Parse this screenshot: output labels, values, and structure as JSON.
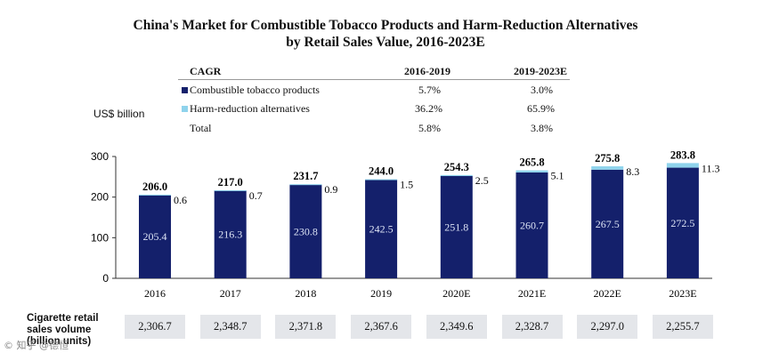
{
  "title_line1": "China's Market for Combustible Tobacco Products and Harm-Reduction Alternatives",
  "title_line2": "by Retail Sales Value, 2016-2023E",
  "cagr_table": {
    "header": "CAGR",
    "col1": "2016-2019",
    "col2": "2019-2023E",
    "rows": [
      {
        "label": "Combustible tobacco products",
        "v1": "5.7%",
        "v2": "3.0%"
      },
      {
        "label": "Harm-reduction alternatives",
        "v1": "36.2%",
        "v2": "65.9%"
      },
      {
        "label": "Total",
        "v1": "5.8%",
        "v2": "3.8%"
      }
    ]
  },
  "unit_label": "US$ billion",
  "colors": {
    "combustible": "#14206b",
    "harm": "#8fd3ec"
  },
  "chart_data": {
    "type": "bar",
    "stacked": true,
    "categories": [
      "2016",
      "2017",
      "2018",
      "2019",
      "2020E",
      "2021E",
      "2022E",
      "2023E"
    ],
    "series": [
      {
        "name": "Combustible tobacco products",
        "values": [
          205.4,
          216.3,
          230.8,
          242.5,
          251.8,
          260.7,
          267.5,
          272.5
        ]
      },
      {
        "name": "Harm-reduction alternatives",
        "values": [
          0.6,
          0.7,
          0.9,
          1.5,
          2.5,
          5.1,
          8.3,
          11.3
        ]
      }
    ],
    "totals": [
      206.0,
      217.0,
      231.7,
      244.0,
      254.3,
      265.8,
      275.8,
      283.8
    ],
    "combustible_labels": [
      "205.4",
      "216.3",
      "230.8",
      "242.5",
      "251.8",
      "260.7",
      "267.5",
      "272.5"
    ],
    "harm_labels": [
      "0.6",
      "0.7",
      "0.9",
      "1.5",
      "2.5",
      "5.1",
      "8.3",
      "11.3"
    ],
    "total_labels": [
      "206.0",
      "217.0",
      "231.7",
      "244.0",
      "254.3",
      "265.8",
      "275.8",
      "283.8"
    ],
    "ylim": [
      0,
      300
    ],
    "yticks": [
      "0",
      "100",
      "200",
      "300"
    ],
    "ylabel": "US$ billion",
    "grid": false
  },
  "volume": {
    "title_line1": "Cigarette retail",
    "title_line2": "sales volume",
    "title_line3": "(billion units)",
    "values": [
      "2,306.7",
      "2,348.7",
      "2,371.8",
      "2,367.6",
      "2,349.6",
      "2,328.7",
      "2,297.0",
      "2,255.7"
    ]
  },
  "watermark": "© 知乎 @德恒"
}
